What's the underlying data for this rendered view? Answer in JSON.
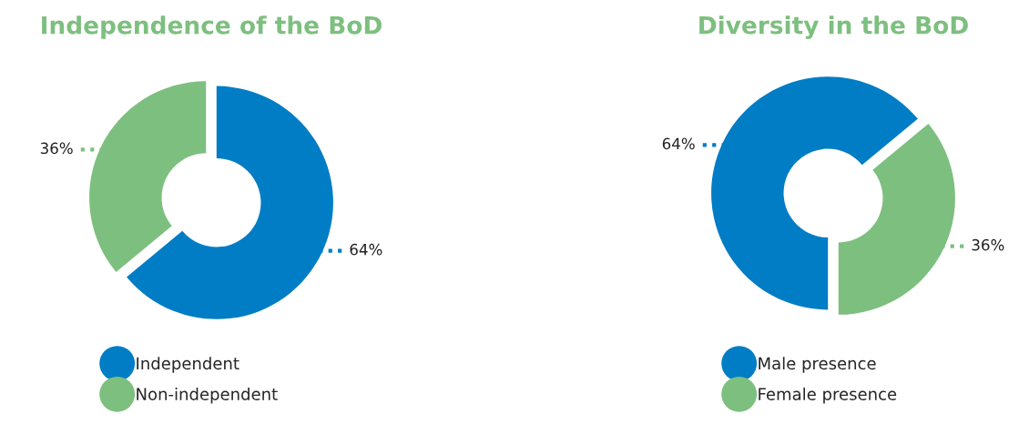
{
  "chart_data": [
    {
      "type": "donut",
      "title": "Independence of the BoD",
      "categories": [
        "Independent",
        "Non-independent"
      ],
      "values": [
        64,
        36
      ],
      "colors": [
        "#007dc5",
        "#7dbf7f"
      ],
      "value_labels": [
        "64%",
        "36%"
      ],
      "legend": "bottom"
    },
    {
      "type": "donut",
      "title": "Diversity in the BoD",
      "categories": [
        "Male presence",
        "Female presence"
      ],
      "values": [
        64,
        36
      ],
      "colors": [
        "#007dc5",
        "#7dbf7f"
      ],
      "value_labels": [
        "64%",
        "36%"
      ],
      "legend": "bottom"
    }
  ]
}
